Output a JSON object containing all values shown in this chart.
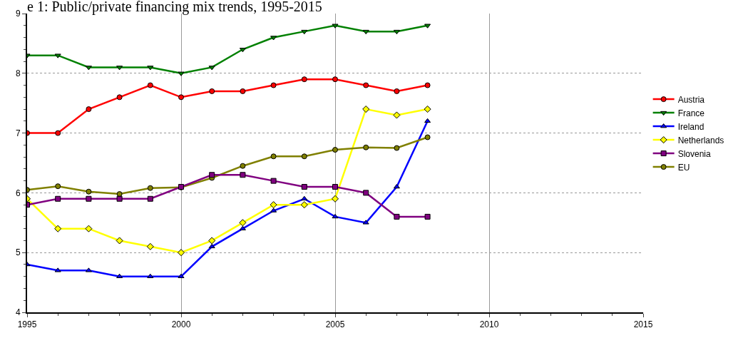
{
  "chart_data": {
    "type": "line",
    "title": "e 1: Public/private financing mix trends, 1995-2015",
    "x": [
      1995,
      1996,
      1997,
      1998,
      1999,
      2000,
      2001,
      2002,
      2003,
      2004,
      2005,
      2006,
      2007,
      2008
    ],
    "series": [
      {
        "name": "Austria",
        "color": "#ff0000",
        "marker": "circle",
        "values": [
          7.0,
          7.0,
          7.4,
          7.6,
          7.8,
          7.6,
          7.7,
          7.7,
          7.8,
          7.9,
          7.9,
          7.8,
          7.7,
          7.8
        ]
      },
      {
        "name": "France",
        "color": "#008000",
        "marker": "triangle-down",
        "values": [
          8.3,
          8.3,
          8.1,
          8.1,
          8.1,
          8.0,
          8.1,
          8.4,
          8.6,
          8.7,
          8.8,
          8.7,
          8.7,
          8.8
        ]
      },
      {
        "name": "Ireland",
        "color": "#0000ff",
        "marker": "triangle",
        "values": [
          4.8,
          4.7,
          4.7,
          4.6,
          4.6,
          4.6,
          5.1,
          5.4,
          5.7,
          5.9,
          5.6,
          5.5,
          6.1,
          7.2
        ]
      },
      {
        "name": "Netherlands",
        "color": "#ffff00",
        "marker": "diamond",
        "values": [
          5.9,
          5.4,
          5.4,
          5.2,
          5.1,
          5.0,
          5.2,
          5.5,
          5.8,
          5.8,
          5.9,
          7.4,
          7.3,
          7.4
        ]
      },
      {
        "name": "Slovenia",
        "color": "#800080",
        "marker": "square",
        "values": [
          5.8,
          5.9,
          5.9,
          5.9,
          5.9,
          6.1,
          6.3,
          6.3,
          6.2,
          6.1,
          6.1,
          6.0,
          5.6,
          5.6
        ]
      },
      {
        "name": "EU",
        "color": "#808000",
        "marker": "circle",
        "values": [
          6.05,
          6.11,
          6.02,
          5.98,
          6.08,
          6.09,
          6.25,
          6.45,
          6.61,
          6.61,
          6.72,
          6.76,
          6.75,
          6.93
        ]
      }
    ],
    "xlim": [
      1995,
      2015
    ],
    "xticks": [
      1995,
      2000,
      2005,
      2010,
      2015
    ],
    "ylim": [
      4,
      9
    ],
    "yticks": [
      4,
      5,
      6,
      7,
      8,
      9
    ],
    "grid": true,
    "legend": "right",
    "line_style": "solid"
  }
}
